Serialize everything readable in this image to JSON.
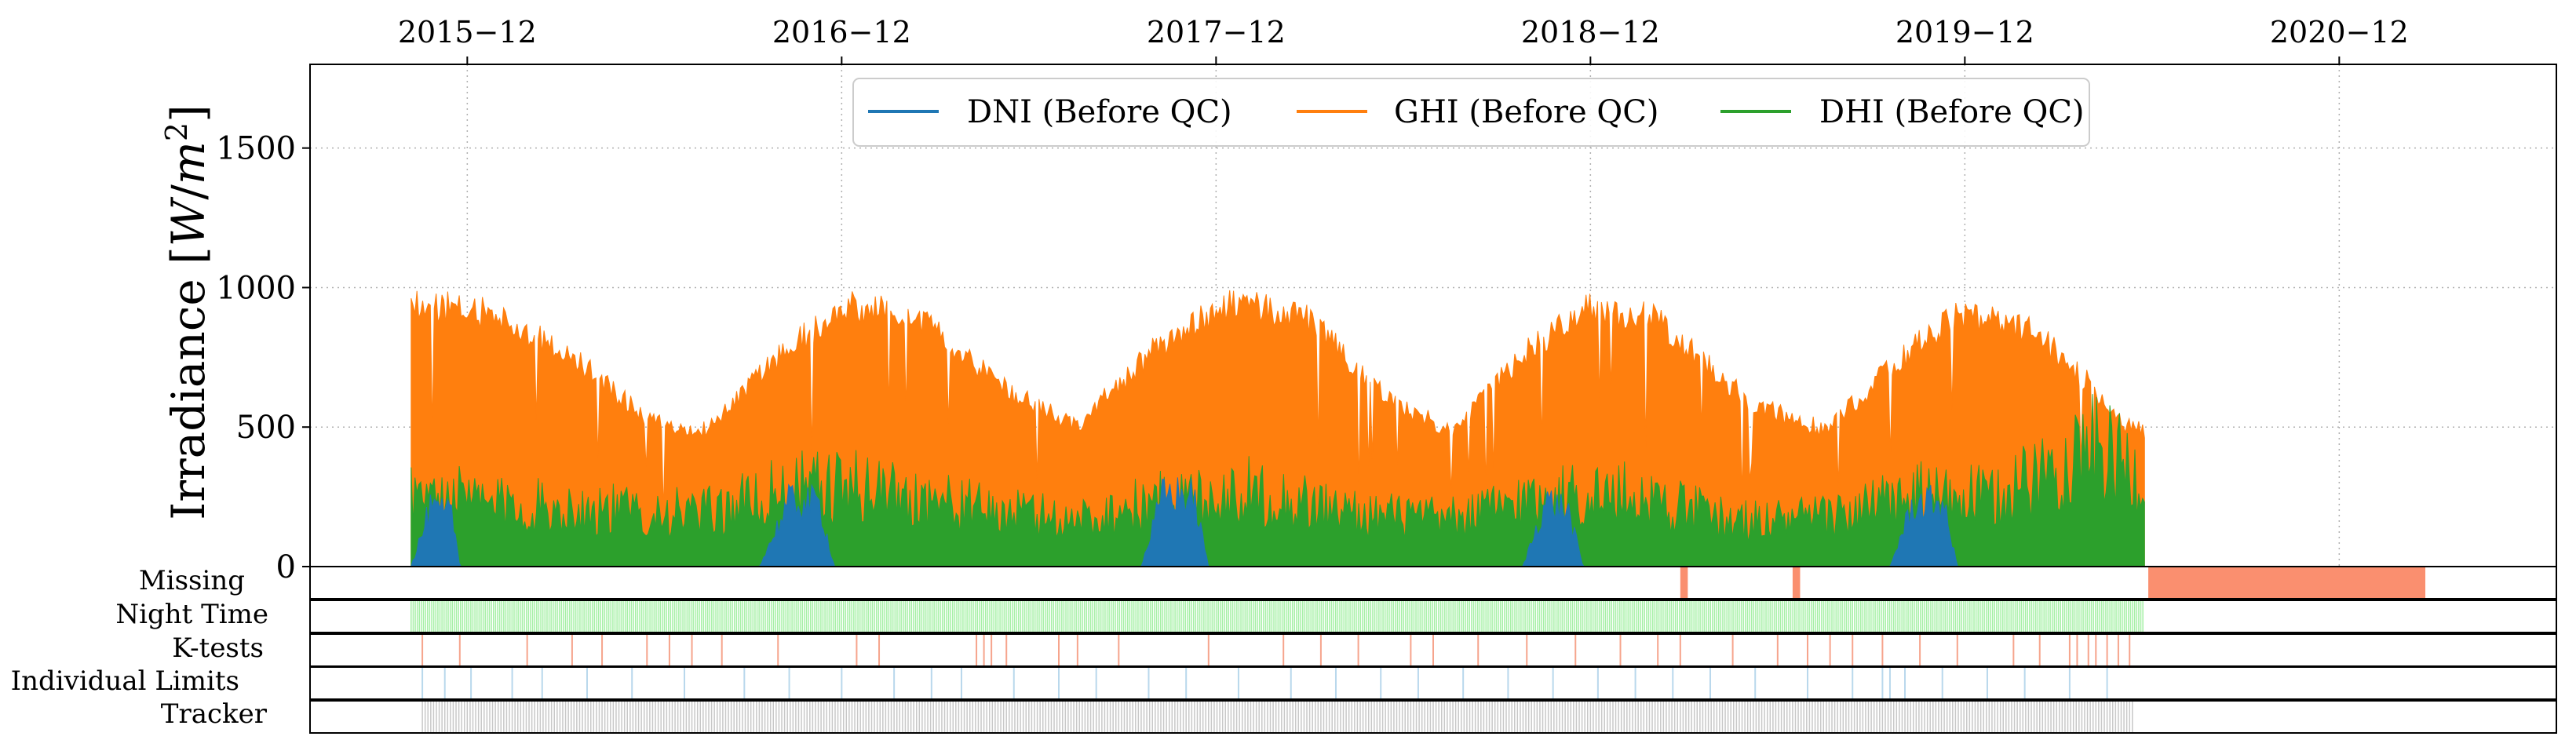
{
  "chart_data": {
    "type": "area",
    "top_axis_ticks": [
      "2015−12",
      "2016−12",
      "2017−12",
      "2018−12",
      "2019−12",
      "2020−12"
    ],
    "ylabel": "Irradiance [W/m²]",
    "ylabel_main": "Irradiance [",
    "ylabel_unit_w": "W",
    "ylabel_unit_m": "m",
    "ylabel_unit_exp": "2",
    "ylim": [
      0,
      1800
    ],
    "y_ticks": [
      0,
      500,
      1000,
      1500
    ],
    "x_range_years": [
      2015.5,
      2021.5
    ],
    "data_span_years": [
      2015.77,
      2020.4
    ],
    "grid": true,
    "legend_position": "top-center",
    "series": [
      {
        "name": "GHI (Before QC)",
        "color": "#ff7f0e",
        "x": [
          2015.77,
          2015.85,
          2016.0,
          2016.2,
          2016.4,
          2016.55,
          2016.75,
          2016.92,
          2017.1,
          2017.4,
          2017.55,
          2017.75,
          2017.95,
          2018.15,
          2018.4,
          2018.55,
          2018.75,
          2018.92,
          2019.1,
          2019.35,
          2019.55,
          2019.75,
          2019.9,
          2020.1,
          2020.25,
          2020.35,
          2020.4
        ],
        "values": [
          1000,
          990,
          960,
          800,
          560,
          520,
          800,
          990,
          970,
          640,
          540,
          820,
          1000,
          960,
          620,
          520,
          820,
          990,
          940,
          620,
          520,
          800,
          960,
          900,
          700,
          540,
          520
        ]
      },
      {
        "name": "DHI (Before QC)",
        "color": "#2ca02c",
        "x": [
          2015.77,
          2016.0,
          2016.3,
          2016.55,
          2016.8,
          2017.0,
          2017.3,
          2017.55,
          2017.8,
          2018.0,
          2018.3,
          2018.55,
          2018.8,
          2019.05,
          2019.3,
          2019.55,
          2019.8,
          2020.0,
          2020.15,
          2020.25,
          2020.4
        ],
        "values": [
          400,
          330,
          300,
          280,
          420,
          420,
          300,
          250,
          360,
          400,
          280,
          250,
          380,
          380,
          240,
          260,
          380,
          360,
          520,
          640,
          480
        ]
      },
      {
        "name": "DNI (Before QC)",
        "color": "#1f77b4",
        "x": [
          2015.77,
          2015.82,
          2015.88,
          2015.9,
          2016.7,
          2016.78,
          2016.86,
          2016.9,
          2017.72,
          2017.78,
          2017.86,
          2017.9,
          2018.74,
          2018.8,
          2018.86,
          2018.9,
          2019.72,
          2019.78,
          2019.86,
          2019.9
        ],
        "values": [
          0,
          260,
          240,
          0,
          0,
          300,
          290,
          0,
          0,
          340,
          320,
          0,
          0,
          300,
          260,
          0,
          0,
          280,
          300,
          0
        ]
      }
    ],
    "legend_order": [
      "DNI (Before QC)",
      "GHI (Before QC)",
      "DHI (Before QC)"
    ],
    "flag_rows": [
      {
        "label": "Missing",
        "color": "#fa8f6f",
        "spans": [
          [
            2019.16,
            2019.18
          ],
          [
            2019.46,
            2019.48
          ],
          [
            2020.41,
            2021.15
          ]
        ],
        "ticks": []
      },
      {
        "label": "Night Time",
        "color": "#a6f0a6",
        "spans": [],
        "tick_range": [
          2015.77,
          2020.4
        ],
        "tick_step": 0.0055
      },
      {
        "label": "K-tests",
        "color": "#f6a48c",
        "spans": [],
        "ticks": [
          2015.8,
          2015.9,
          2016.08,
          2016.2,
          2016.28,
          2016.4,
          2016.46,
          2016.52,
          2016.6,
          2016.75,
          2016.96,
          2017.02,
          2017.28,
          2017.3,
          2017.32,
          2017.36,
          2017.5,
          2017.55,
          2017.66,
          2017.9,
          2018.1,
          2018.2,
          2018.3,
          2018.44,
          2018.5,
          2018.62,
          2018.75,
          2018.88,
          2019.0,
          2019.1,
          2019.16,
          2019.3,
          2019.42,
          2019.5,
          2019.56,
          2019.62,
          2019.7,
          2019.8,
          2019.9,
          2020.05,
          2020.12,
          2020.2,
          2020.22,
          2020.25,
          2020.27,
          2020.3,
          2020.33,
          2020.36
        ]
      },
      {
        "label": "Individual Limits",
        "color": "#b9d8ec",
        "spans": [],
        "ticks": [
          2015.8,
          2015.86,
          2015.93,
          2016.04,
          2016.12,
          2016.24,
          2016.36,
          2016.5,
          2016.66,
          2016.78,
          2016.92,
          2017.06,
          2017.16,
          2017.24,
          2017.38,
          2017.5,
          2017.6,
          2017.74,
          2017.84,
          2017.98,
          2018.12,
          2018.24,
          2018.36,
          2018.46,
          2018.58,
          2018.7,
          2018.82,
          2018.94,
          2019.04,
          2019.14,
          2019.24,
          2019.36,
          2019.5,
          2019.62,
          2019.7,
          2019.72,
          2019.76,
          2019.86,
          2019.98,
          2020.08,
          2020.2,
          2020.3
        ]
      },
      {
        "label": "Tracker",
        "color": "#c8c8c8",
        "spans": [],
        "tick_range": [
          2015.8,
          2020.37
        ],
        "tick_step": 0.0075
      }
    ]
  }
}
